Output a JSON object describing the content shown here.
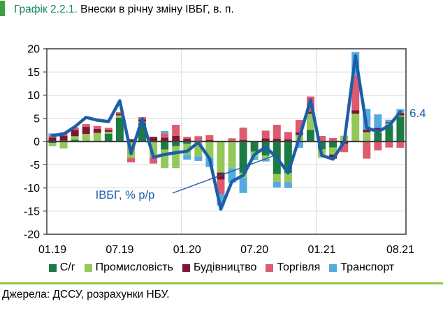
{
  "title": {
    "number": "Графік 2.2.1.",
    "text": " Внески в річну зміну ІВБГ, в. п."
  },
  "source": "Джерела: ДССУ, розрахунки НБУ.",
  "colors": {
    "title_number": "#108A5A",
    "title_marker": "#3C9F42",
    "divider": "#93C83D",
    "grid": "#D9D9D9",
    "plot_border": "#595959",
    "zero_axis": "#404040",
    "axis_text": "#000000"
  },
  "chart_data": {
    "type": "bar",
    "subtype": "stacked-bars-with-line-overlay",
    "title": "Внески в річну зміну ІВБГ, в. п.",
    "xlabel": "",
    "ylabel": "",
    "ylim": [
      -20,
      20
    ],
    "ytick_step": 5,
    "grid": true,
    "legend_position": "bottom",
    "categories": [
      "01.19",
      "02.19",
      "03.19",
      "04.19",
      "05.19",
      "06.19",
      "07.19",
      "08.19",
      "09.19",
      "10.19",
      "11.19",
      "12.19",
      "01.20",
      "02.20",
      "03.20",
      "04.20",
      "05.20",
      "06.20",
      "07.20",
      "08.20",
      "09.20",
      "10.20",
      "11.20",
      "12.20",
      "01.21",
      "02.21",
      "03.21",
      "04.21",
      "05.21",
      "06.21",
      "07.21",
      "08.21"
    ],
    "x_ticks": [
      {
        "index": 0,
        "label": "01.19"
      },
      {
        "index": 6,
        "label": "07.19"
      },
      {
        "index": 12,
        "label": "01.20"
      },
      {
        "index": 18,
        "label": "07.20"
      },
      {
        "index": 24,
        "label": "01.21"
      },
      {
        "index": 31,
        "label": "08.21"
      }
    ],
    "year_boundaries": [
      12,
      24
    ],
    "series": [
      {
        "name": "С/г",
        "color": "#1B7B42",
        "values": [
          -0.3,
          0.2,
          0.4,
          0.15,
          0.15,
          1.7,
          5.15,
          0,
          4.0,
          0,
          -1.75,
          -1.0,
          -0.5,
          0,
          0,
          0,
          0,
          -6.75,
          -2.2,
          -3.0,
          -7.0,
          -6.8,
          0,
          2.5,
          -1.7,
          -1.3,
          0,
          0,
          0,
          1.9,
          3.6,
          5.35
        ]
      },
      {
        "name": "Промисловість",
        "color": "#93C85B",
        "values": [
          -0.7,
          -1.5,
          0.75,
          1.5,
          1.7,
          0.4,
          0.5,
          -3.6,
          0.3,
          -3.35,
          -4.0,
          -4.75,
          -2.4,
          -3.2,
          -3.5,
          -6.7,
          -5.8,
          -1.05,
          -1.2,
          -0.7,
          -1.7,
          -2.0,
          1.4,
          3.5,
          -1.8,
          -1.5,
          1.25,
          6.0,
          2.0,
          0.6,
          0.3,
          0.25
        ]
      },
      {
        "name": "Будівництво",
        "color": "#7C1733",
        "values": [
          0.85,
          1.0,
          1.35,
          1.5,
          0.9,
          0.35,
          0.35,
          0.5,
          0.45,
          1.0,
          0.85,
          1.25,
          0.6,
          0,
          0.35,
          -1.5,
          0.2,
          0.35,
          0,
          0.7,
          0.6,
          0.45,
          0.55,
          0.4,
          0,
          -0.9,
          -0.5,
          0.75,
          0.6,
          0.45,
          0.25,
          0.55
        ]
      },
      {
        "name": "Торгівля",
        "color": "#DE5A6E",
        "values": [
          0.45,
          0.55,
          0.55,
          0.6,
          0.6,
          0.5,
          0.35,
          -0.9,
          0.5,
          -1.4,
          0.9,
          2.35,
          0.4,
          1.15,
          1.0,
          -3.1,
          0.5,
          2.65,
          0,
          1.65,
          3.0,
          1.6,
          2.7,
          3.3,
          1.2,
          0.75,
          -1.8,
          7.45,
          -3.7,
          -1.9,
          -1.3,
          -1.35
        ]
      },
      {
        "name": "Транспорт",
        "color": "#55AADF",
        "values": [
          0.45,
          0.3,
          0,
          0,
          0,
          0,
          0,
          0,
          0,
          0,
          0.5,
          0,
          -1.0,
          -1.0,
          -2.0,
          -2.5,
          -3.1,
          -3.3,
          -0.6,
          -0.6,
          -1.2,
          -1.2,
          -1.35,
          0,
          0,
          0,
          0,
          5.1,
          4.45,
          2.9,
          0.55,
          0.85
        ]
      }
    ],
    "line_series": {
      "name": "ІВБГ, % р/р",
      "color": "#1C5FA8",
      "values": [
        1.3,
        1.6,
        3.2,
        5.2,
        4.6,
        4.3,
        8.8,
        -2.6,
        4.9,
        -3.4,
        -2.8,
        -2.4,
        -2.1,
        -0.2,
        -3.7,
        -14.6,
        -8.6,
        -7.3,
        -2.8,
        -1.2,
        -3.5,
        -6.8,
        0.8,
        9.0,
        -3.0,
        -3.8,
        0.0,
        18.5,
        3.0,
        2.1,
        3.4,
        6.4
      ]
    },
    "annotation": {
      "text": "ІВБГ, % р/р"
    },
    "end_label": "6.4"
  }
}
